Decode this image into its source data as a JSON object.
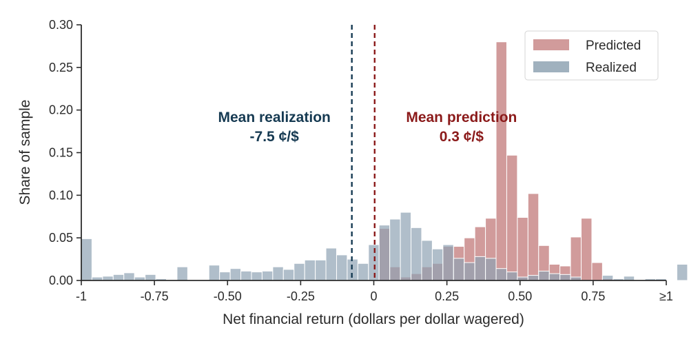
{
  "chart_data": {
    "type": "histogram",
    "xlabel": "Net financial return (dollars per dollar wagered)",
    "ylabel": "Share of sample",
    "xlim": [
      -1,
      1
    ],
    "ylim": [
      0,
      0.3
    ],
    "x_ticks": [
      {
        "value": -1,
        "label": "-1"
      },
      {
        "value": -0.75,
        "label": "-0.75"
      },
      {
        "value": -0.5,
        "label": "-0.50"
      },
      {
        "value": -0.25,
        "label": "-0.25"
      },
      {
        "value": 0,
        "label": "0"
      },
      {
        "value": 0.25,
        "label": "0.25"
      },
      {
        "value": 0.5,
        "label": "0.50"
      },
      {
        "value": 0.75,
        "label": "0.75"
      },
      {
        "value": 1,
        "label": "≥1"
      }
    ],
    "y_ticks": [
      {
        "value": 0,
        "label": "0.00"
      },
      {
        "value": 0.05,
        "label": "0.05"
      },
      {
        "value": 0.1,
        "label": "0.10"
      },
      {
        "value": 0.15,
        "label": "0.15"
      },
      {
        "value": 0.2,
        "label": "0.20"
      },
      {
        "value": 0.25,
        "label": "0.25"
      },
      {
        "value": 0.3,
        "label": "0.30"
      }
    ],
    "bin_start": -1,
    "bin_width": 0.036364,
    "series": [
      {
        "name": "Predicted",
        "color": "#c98a8a",
        "values": [
          0,
          0,
          0,
          0,
          0,
          0,
          0,
          0,
          0,
          0,
          0,
          0,
          0,
          0,
          0,
          0,
          0,
          0,
          0,
          0,
          0,
          0,
          0,
          0,
          0,
          0,
          0,
          0,
          0.061,
          0.016,
          0.004,
          0.008,
          0.016,
          0.02,
          0.04,
          0.04,
          0.05,
          0.063,
          0.073,
          0.28,
          0.147,
          0.074,
          0.102,
          0.041,
          0.019,
          0.017,
          0.051,
          0.073,
          0.021,
          0.002,
          0,
          0,
          0,
          0,
          0,
          0,
          0
        ]
      },
      {
        "name": "Realized",
        "color": "#8fa3b3",
        "values": [
          0.049,
          0.004,
          0.005,
          0.007,
          0.009,
          0.004,
          0.007,
          0.002,
          0,
          0.016,
          0,
          0,
          0.018,
          0.01,
          0.014,
          0.011,
          0.01,
          0.011,
          0.016,
          0.013,
          0.02,
          0.024,
          0.024,
          0.038,
          0.03,
          0.025,
          0.02,
          0.042,
          0.065,
          0.072,
          0.08,
          0.062,
          0.047,
          0.037,
          0.042,
          0.026,
          0.021,
          0.028,
          0.026,
          0.014,
          0.01,
          0.004,
          0.006,
          0.011,
          0.008,
          0.007,
          0.004,
          0,
          0,
          0.006,
          0.002,
          0.005,
          0,
          0.002,
          0.002,
          0,
          0.019
        ]
      }
    ],
    "vlines": [
      {
        "name": "mean-realization-line",
        "x": -0.075,
        "color": "#163a52",
        "style": "dashed"
      },
      {
        "name": "mean-prediction-line",
        "x": 0.003,
        "color": "#8b1a1a",
        "style": "dashed"
      }
    ],
    "annotations": [
      {
        "name": "mean-realization-annotation",
        "line1": "Mean realization",
        "line2": "-7.5 ¢/$",
        "x": -0.34,
        "color": "#163a52"
      },
      {
        "name": "mean-prediction-annotation",
        "line1": "Mean prediction",
        "line2": "0.3 ¢/$",
        "x": 0.3,
        "color": "#8b1a1a"
      }
    ],
    "legend": {
      "position": "top-right",
      "entries": [
        "Predicted",
        "Realized"
      ]
    }
  }
}
